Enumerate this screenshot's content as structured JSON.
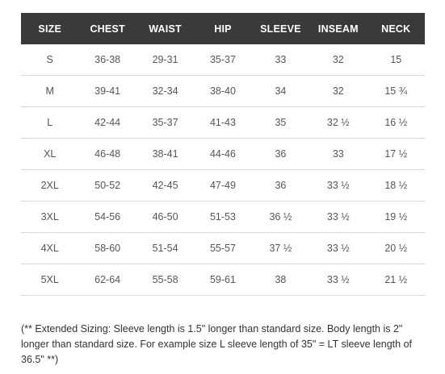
{
  "table": {
    "headers": [
      "SIZE",
      "CHEST",
      "WAIST",
      "HIP",
      "SLEEVE",
      "INSEAM",
      "NECK"
    ],
    "rows": [
      [
        "S",
        "36-38",
        "29-31",
        "35-37",
        "33",
        "32",
        "15"
      ],
      [
        "M",
        "39-41",
        "32-34",
        "38-40",
        "34",
        "32",
        "15 ¾"
      ],
      [
        "L",
        "42-44",
        "35-37",
        "41-43",
        "35",
        "32 ½",
        "16 ½"
      ],
      [
        "XL",
        "46-48",
        "38-41",
        "44-46",
        "36",
        "33",
        "17 ½"
      ],
      [
        "2XL",
        "50-52",
        "42-45",
        "47-49",
        "36",
        "33 ½",
        "18 ½"
      ],
      [
        "3XL",
        "54-56",
        "46-50",
        "51-53",
        "36 ½",
        "33 ½",
        "19 ½"
      ],
      [
        "4XL",
        "58-60",
        "51-54",
        "55-57",
        "37 ½",
        "33 ½",
        "20 ½"
      ],
      [
        "5XL",
        "62-64",
        "55-58",
        "59-61",
        "38",
        "33 ½",
        "21 ½"
      ]
    ]
  },
  "note": "(** Extended Sizing: Sleeve length is 1.5\" longer than standard size. Body length is 2\" longer than standard size. For example size L sleeve length of 35\" = LT sleeve length of 36.5\" **)"
}
